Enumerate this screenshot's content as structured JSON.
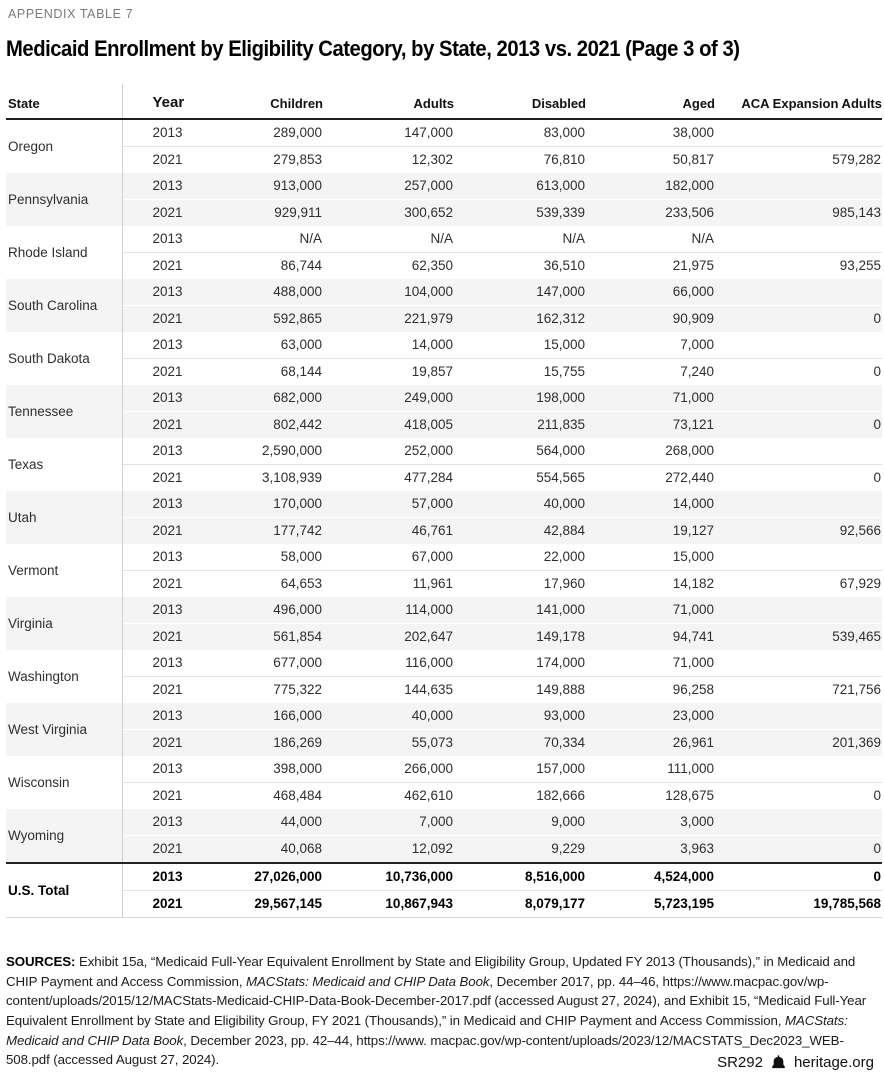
{
  "header": {
    "kicker": "APPENDIX TABLE 7",
    "title": "Medicaid Enrollment by Eligibility Category, by State, 2013 vs. 2021 (Page 3 of 3)"
  },
  "table": {
    "columns": [
      "State",
      "Year",
      "Children",
      "Adults",
      "Disabled",
      "Aged",
      "ACA Expansion Adults"
    ],
    "states": [
      {
        "name": "Oregon",
        "rows": [
          [
            "2013",
            "289,000",
            "147,000",
            "83,000",
            "38,000",
            ""
          ],
          [
            "2021",
            "279,853",
            "12,302",
            "76,810",
            "50,817",
            "579,282"
          ]
        ]
      },
      {
        "name": "Pennsylvania",
        "rows": [
          [
            "2013",
            "913,000",
            "257,000",
            "613,000",
            "182,000",
            ""
          ],
          [
            "2021",
            "929,911",
            "300,652",
            "539,339",
            "233,506",
            "985,143"
          ]
        ]
      },
      {
        "name": "Rhode Island",
        "rows": [
          [
            "2013",
            "N/A",
            "N/A",
            "N/A",
            "N/A",
            ""
          ],
          [
            "2021",
            "86,744",
            "62,350",
            "36,510",
            "21,975",
            "93,255"
          ]
        ]
      },
      {
        "name": "South Carolina",
        "rows": [
          [
            "2013",
            "488,000",
            "104,000",
            "147,000",
            "66,000",
            ""
          ],
          [
            "2021",
            "592,865",
            "221,979",
            "162,312",
            "90,909",
            "0"
          ]
        ]
      },
      {
        "name": "South Dakota",
        "rows": [
          [
            "2013",
            "63,000",
            "14,000",
            "15,000",
            "7,000",
            ""
          ],
          [
            "2021",
            "68,144",
            "19,857",
            "15,755",
            "7,240",
            "0"
          ]
        ]
      },
      {
        "name": "Tennessee",
        "rows": [
          [
            "2013",
            "682,000",
            "249,000",
            "198,000",
            "71,000",
            ""
          ],
          [
            "2021",
            "802,442",
            "418,005",
            "211,835",
            "73,121",
            "0"
          ]
        ]
      },
      {
        "name": "Texas",
        "rows": [
          [
            "2013",
            "2,590,000",
            "252,000",
            "564,000",
            "268,000",
            ""
          ],
          [
            "2021",
            "3,108,939",
            "477,284",
            "554,565",
            "272,440",
            "0"
          ]
        ]
      },
      {
        "name": "Utah",
        "rows": [
          [
            "2013",
            "170,000",
            "57,000",
            "40,000",
            "14,000",
            ""
          ],
          [
            "2021",
            "177,742",
            "46,761",
            "42,884",
            "19,127",
            "92,566"
          ]
        ]
      },
      {
        "name": "Vermont",
        "rows": [
          [
            "2013",
            "58,000",
            "67,000",
            "22,000",
            "15,000",
            ""
          ],
          [
            "2021",
            "64,653",
            "11,961",
            "17,960",
            "14,182",
            "67,929"
          ]
        ]
      },
      {
        "name": "Virginia",
        "rows": [
          [
            "2013",
            "496,000",
            "114,000",
            "141,000",
            "71,000",
            ""
          ],
          [
            "2021",
            "561,854",
            "202,647",
            "149,178",
            "94,741",
            "539,465"
          ]
        ]
      },
      {
        "name": "Washington",
        "rows": [
          [
            "2013",
            "677,000",
            "116,000",
            "174,000",
            "71,000",
            ""
          ],
          [
            "2021",
            "775,322",
            "144,635",
            "149,888",
            "96,258",
            "721,756"
          ]
        ]
      },
      {
        "name": "West Virginia",
        "rows": [
          [
            "2013",
            "166,000",
            "40,000",
            "93,000",
            "23,000",
            ""
          ],
          [
            "2021",
            "186,269",
            "55,073",
            "70,334",
            "26,961",
            "201,369"
          ]
        ]
      },
      {
        "name": "Wisconsin",
        "rows": [
          [
            "2013",
            "398,000",
            "266,000",
            "157,000",
            "111,000",
            ""
          ],
          [
            "2021",
            "468,484",
            "462,610",
            "182,666",
            "128,675",
            "0"
          ]
        ]
      },
      {
        "name": "Wyoming",
        "rows": [
          [
            "2013",
            "44,000",
            "7,000",
            "9,000",
            "3,000",
            ""
          ],
          [
            "2021",
            "40,068",
            "12,092",
            "9,229",
            "3,963",
            "0"
          ]
        ]
      }
    ],
    "total": {
      "name": "U.S. Total",
      "rows": [
        [
          "2013",
          "27,026,000",
          "10,736,000",
          "8,516,000",
          "4,524,000",
          "0"
        ],
        [
          "2021",
          "29,567,145",
          "10,867,943",
          "8,079,177",
          "5,723,195",
          "19,785,568"
        ]
      ]
    }
  },
  "sources": {
    "segments": [
      {
        "t": "SOURCES: ",
        "style": "bold"
      },
      {
        "t": "Exhibit 15a, “Medicaid Full-Year Equivalent Enrollment by State and Eligibility Group, Updated FY 2013 (Thousands),” in Medicaid and CHIP Payment and Access Commission, ",
        "style": "normal"
      },
      {
        "t": "MACStats: Medicaid and CHIP Data Book",
        "style": "italic"
      },
      {
        "t": ", December 2017, pp. 44–46, https://www.macpac.gov/wp-content/uploads/2015/12/MACStats-Medicaid-CHIP-Data-Book-December-2017.pdf (accessed August 27, 2024), and Exhibit 15, “Medicaid Full-Year Equivalent Enrollment by State and Eligibility Group, FY 2021 (Thousands),” in Medicaid and CHIP Payment and Access Commission, ",
        "style": "normal"
      },
      {
        "t": "MACStats: Medicaid and CHIP Data Book",
        "style": "italic"
      },
      {
        "t": ", December 2023, pp. 42–44, https://www. macpac.gov/wp-content/uploads/2023/12/MACSTATS_Dec2023_WEB-508.pdf (accessed August 27, 2024).",
        "style": "normal"
      }
    ]
  },
  "footer": {
    "doc_id": "SR292",
    "site": "heritage.org",
    "icon": "liberty-bell-icon"
  },
  "colors": {
    "stripe": "#f4f4f4",
    "rule_dark": "#1f1f1f",
    "rule_light": "#e4e4e4",
    "divider_vertical": "#cfcfcf",
    "kicker_text": "#7a7a7a"
  }
}
